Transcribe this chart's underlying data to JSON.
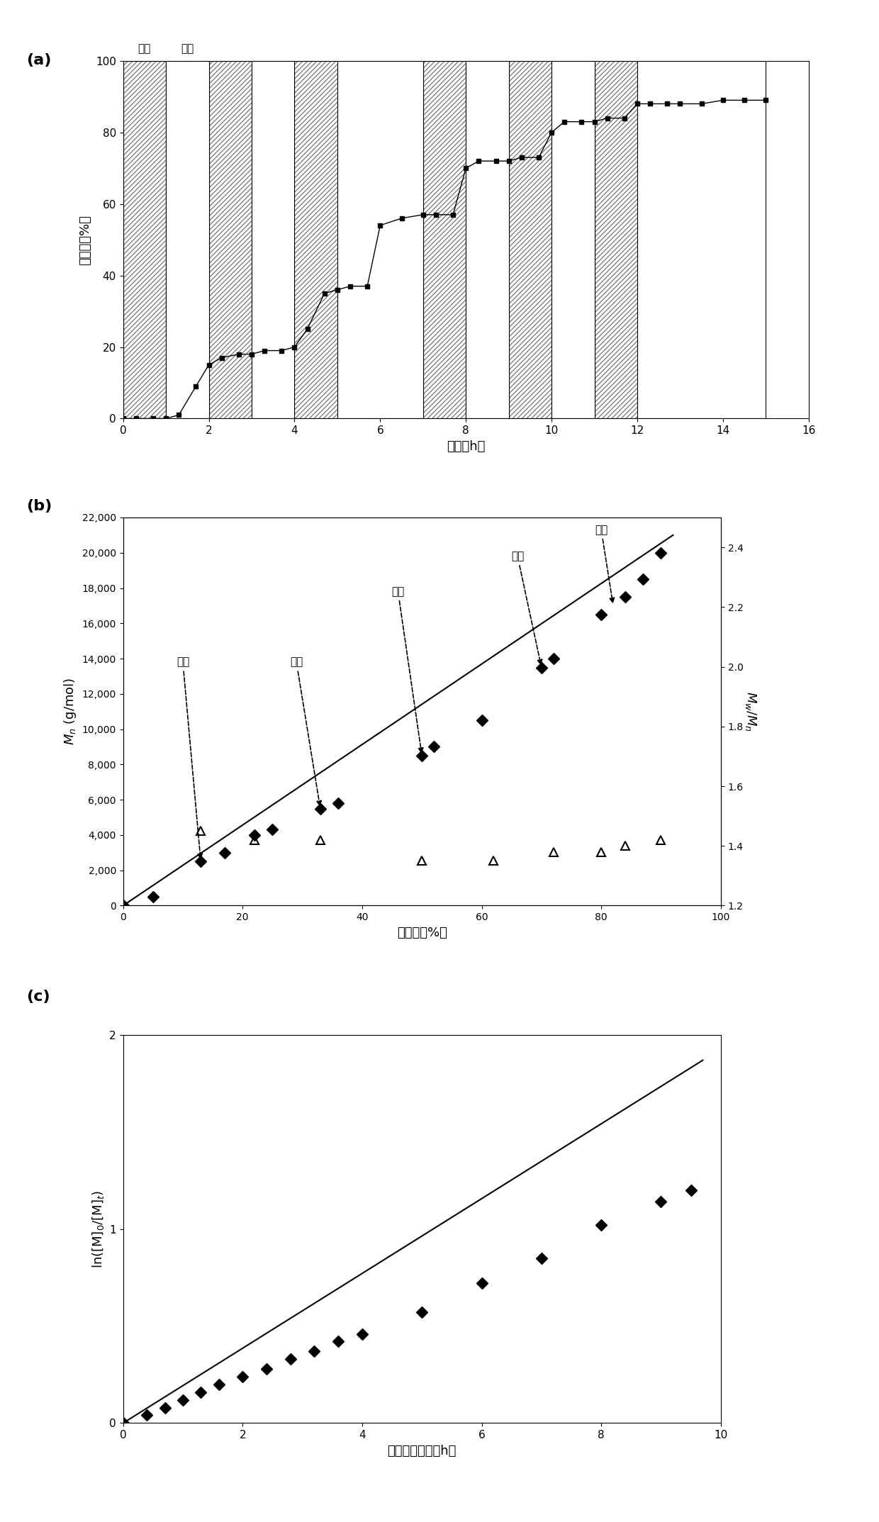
{
  "panel_a": {
    "title_label": "(a)",
    "xlabel": "时间（h）",
    "ylabel": "转化率（%）",
    "xlim": [
      0,
      16
    ],
    "ylim": [
      0,
      100
    ],
    "xticks": [
      0,
      2,
      4,
      6,
      8,
      10,
      12,
      14,
      16
    ],
    "yticks": [
      0,
      20,
      40,
      60,
      80,
      100
    ],
    "off_label": "关闭",
    "on_label": "打开",
    "shaded_off_intervals": [
      [
        0,
        1
      ],
      [
        2,
        3
      ],
      [
        4,
        5
      ],
      [
        7,
        8
      ],
      [
        9,
        10
      ],
      [
        11,
        12
      ]
    ],
    "shaded_on_intervals": [
      [
        1,
        2
      ],
      [
        3,
        4
      ],
      [
        5,
        7
      ],
      [
        8,
        9
      ],
      [
        10,
        11
      ],
      [
        12,
        15
      ]
    ],
    "data_x": [
      0,
      0.3,
      0.7,
      1.0,
      1.3,
      1.7,
      2.0,
      2.3,
      2.7,
      3.0,
      3.3,
      3.7,
      4.0,
      4.3,
      4.7,
      5.0,
      5.3,
      5.7,
      6.0,
      6.5,
      7.0,
      7.3,
      7.7,
      8.0,
      8.3,
      8.7,
      9.0,
      9.3,
      9.7,
      10.0,
      10.3,
      10.7,
      11.0,
      11.3,
      11.7,
      12.0,
      12.3,
      12.7,
      13.0,
      13.5,
      14.0,
      14.5,
      15.0
    ],
    "data_y": [
      0,
      0,
      0,
      0,
      1,
      9,
      15,
      17,
      18,
      18,
      19,
      19,
      20,
      25,
      35,
      36,
      37,
      37,
      54,
      56,
      57,
      57,
      57,
      70,
      72,
      72,
      72,
      73,
      73,
      80,
      83,
      83,
      83,
      84,
      84,
      88,
      88,
      88,
      88,
      88,
      89,
      89,
      89
    ]
  },
  "panel_b": {
    "title_label": "(b)",
    "xlabel": "转化率（%）",
    "ylabel": "$M_n$ (g/mol)",
    "ylabel2": "$M_w$/$M_n$",
    "xlim": [
      0,
      100
    ],
    "ylim_left": [
      0,
      22000
    ],
    "ylim_right": [
      1.2,
      2.5
    ],
    "yticks_left": [
      0,
      2000,
      4000,
      6000,
      8000,
      10000,
      12000,
      14000,
      16000,
      18000,
      20000,
      22000
    ],
    "yticks_right": [
      1.2,
      1.4,
      1.6,
      1.8,
      2.0,
      2.2,
      2.4
    ],
    "xticks": [
      0,
      20,
      40,
      60,
      80,
      100
    ],
    "mn_x": [
      0,
      5,
      13,
      17,
      22,
      25,
      33,
      36,
      50,
      52,
      60,
      70,
      72,
      80,
      84,
      87,
      90
    ],
    "mn_y": [
      0,
      500,
      2500,
      3000,
      4000,
      4300,
      5500,
      5800,
      8500,
      9000,
      10500,
      13500,
      14000,
      16500,
      17500,
      18500,
      20000
    ],
    "pdi_x": [
      13,
      22,
      33,
      50,
      62,
      72,
      80,
      84,
      90
    ],
    "pdi_y": [
      1.45,
      1.42,
      1.42,
      1.35,
      1.35,
      1.38,
      1.38,
      1.4,
      1.42
    ],
    "fit_x": [
      0,
      92
    ],
    "fit_y": [
      0,
      21000
    ],
    "annotations": [
      {
        "text": "关灯",
        "xy_x": 13,
        "xy_y": 2500,
        "xt": 10,
        "yt": 13500
      },
      {
        "text": "关灯",
        "xy_x": 33,
        "xy_y": 5500,
        "xt": 29,
        "yt": 13500
      },
      {
        "text": "关灯",
        "xy_x": 50,
        "xy_y": 8500,
        "xt": 46,
        "yt": 17500
      },
      {
        "text": "关灯",
        "xy_x": 70,
        "xy_y": 13500,
        "xt": 66,
        "yt": 19500
      },
      {
        "text": "关灯",
        "xy_x": 82,
        "xy_y": 17000,
        "xt": 80,
        "yt": 21000
      }
    ]
  },
  "panel_c": {
    "title_label": "(c)",
    "xlabel": "光暴露的时间（h）",
    "ylabel": "ln([M]$_0$/[M]$_t$)",
    "xlim": [
      0,
      10
    ],
    "ylim": [
      0,
      2
    ],
    "xticks": [
      0,
      2,
      4,
      6,
      8,
      10
    ],
    "yticks": [
      0,
      1,
      2
    ],
    "data_x": [
      0,
      0.4,
      0.7,
      1.0,
      1.3,
      1.6,
      2.0,
      2.4,
      2.8,
      3.2,
      3.6,
      4.0,
      5.0,
      6.0,
      7.0,
      8.0,
      9.0,
      9.5
    ],
    "data_y": [
      0,
      0.04,
      0.08,
      0.12,
      0.16,
      0.2,
      0.24,
      0.28,
      0.33,
      0.37,
      0.42,
      0.46,
      0.57,
      0.72,
      0.85,
      1.02,
      1.14,
      1.2
    ],
    "fit_x": [
      0,
      9.7
    ],
    "fit_y": [
      0,
      1.87
    ]
  }
}
